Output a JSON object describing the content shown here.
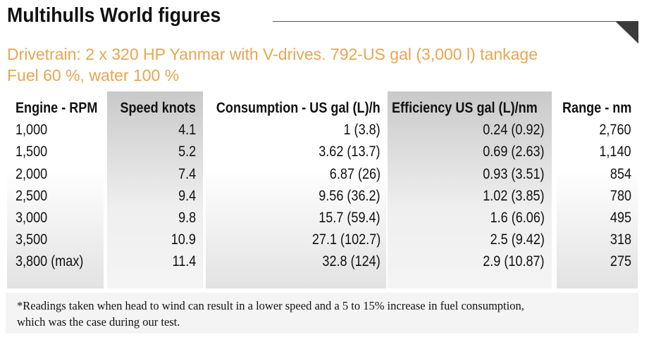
{
  "header": {
    "title": "Multihulls World figures",
    "subtitle": [
      "Drivetrain: 2 x 320 HP Yanmar with V-drives. 792-US gal (3,000 l) tankage",
      "Fuel 60 %, water 100 %"
    ]
  },
  "table": {
    "columns": [
      "Engine - RPM",
      "Speed knots",
      "Consumption - US gal (L)/h",
      "Efficiency  US gal (L)/nm",
      "Range - nm"
    ],
    "rows": [
      [
        "1,000",
        "4.1",
        "1 (3.8)",
        "0.24 (0.92)",
        "2,760"
      ],
      [
        "1,500",
        "5.2",
        "3.62 (13.7)",
        "0.69 (2.63)",
        "1,140"
      ],
      [
        "2,000",
        "7.4",
        "6.87 (26)",
        "0.93 (3.51)",
        "854"
      ],
      [
        "2,500",
        "9.4",
        "9.56 (36.2)",
        "1.02 (3.85)",
        "780"
      ],
      [
        "3,000",
        "9.8",
        "15.7 (59.4)",
        "1.6 (6.06)",
        "495"
      ],
      [
        "3,500",
        "10.9",
        "27.1 (102.7)",
        "2.5 (9.42)",
        "318"
      ],
      [
        "3,800 (max)",
        "11.4",
        "32.8 (124)",
        "2.9 (10.87)",
        "275"
      ]
    ]
  },
  "footnote": [
    "*Readings taken when head to wind can result in a lower speed and a 5 to 15% increase in fuel consumption,",
    "which was the case during our test."
  ]
}
